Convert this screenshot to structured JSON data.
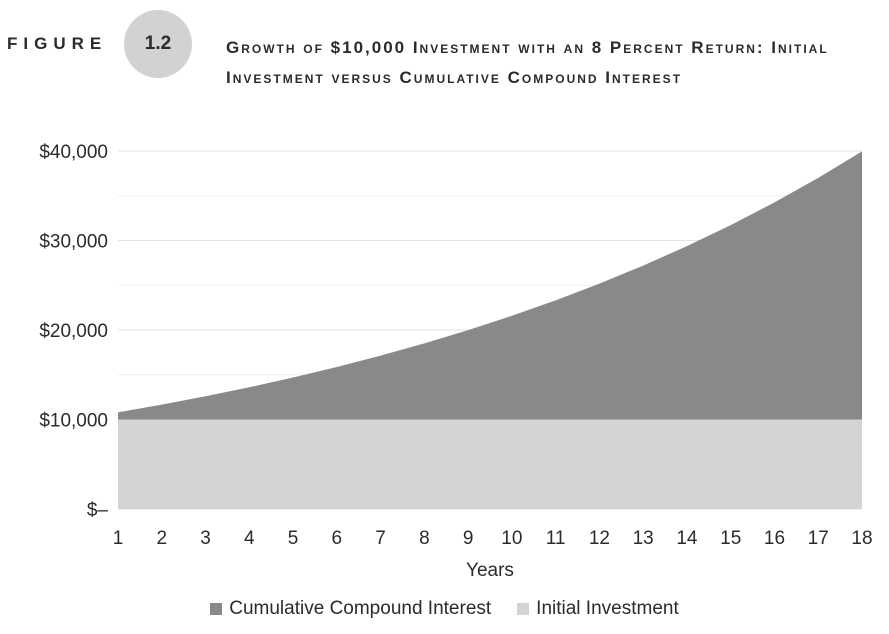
{
  "figure": {
    "label": "FIGURE",
    "number": "1.2",
    "title": "Growth of $10,000 Investment with an 8 Percent Return: Initial Investment versus Cumulative Compound Interest"
  },
  "chart_data": {
    "type": "area",
    "stacked": true,
    "title": "Growth of $10,000 Investment with an 8 Percent Return: Initial Investment versus Cumulative Compound Interest",
    "xlabel": "Years",
    "ylabel": "",
    "x": [
      1,
      2,
      3,
      4,
      5,
      6,
      7,
      8,
      9,
      10,
      11,
      12,
      13,
      14,
      15,
      16,
      17,
      18
    ],
    "ylim": [
      0,
      40000
    ],
    "y_ticks": [
      0,
      10000,
      20000,
      30000,
      40000
    ],
    "y_tick_labels": [
      "$–",
      "$10,000",
      "$20,000",
      "$30,000",
      "$40,000"
    ],
    "grid": true,
    "legend_position": "bottom",
    "series": [
      {
        "name": "Initial Investment",
        "color": "#d4d4d4",
        "values": [
          10000,
          10000,
          10000,
          10000,
          10000,
          10000,
          10000,
          10000,
          10000,
          10000,
          10000,
          10000,
          10000,
          10000,
          10000,
          10000,
          10000,
          10000
        ]
      },
      {
        "name": "Cumulative Compound Interest",
        "color": "#898989",
        "values": [
          800,
          1664,
          2597,
          3605,
          4693,
          5869,
          7138,
          8509,
          9990,
          11589,
          13316,
          15182,
          17196,
          19372,
          21722,
          24259,
          27000,
          29960
        ]
      }
    ]
  },
  "legend": {
    "items": [
      {
        "label": "Cumulative Compound Interest",
        "color": "#898989"
      },
      {
        "label": "Initial Investment",
        "color": "#d4d4d4"
      }
    ]
  }
}
